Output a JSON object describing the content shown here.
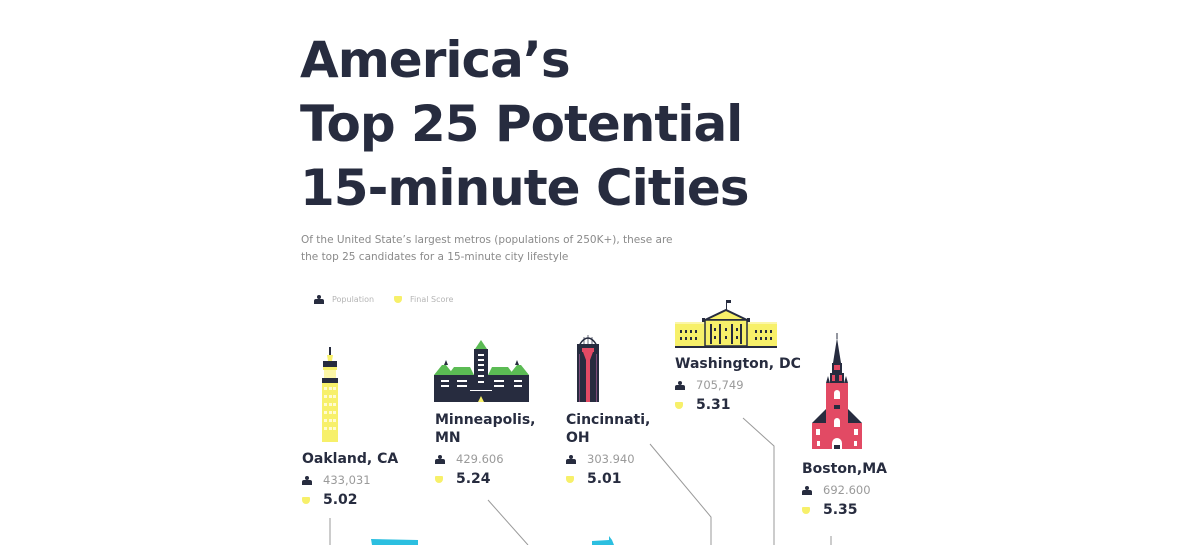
{
  "title": {
    "line1": "America’s",
    "line2": "Top 25 Potential",
    "line3": "15-minute Cities"
  },
  "subtitle": {
    "line1": "Of the United State’s largest metros (populations of 250K+), these are",
    "line2": "the top 25 candidates for a 15-minute city lifestyle"
  },
  "legend": {
    "population": "Population",
    "final_score": "Final Score"
  },
  "colors": {
    "text_dark": "#272c3f",
    "score_yellow": "#f7f06a",
    "boston_red": "#e24a64",
    "minneapolis_green": "#5bbb54",
    "accent_cyan": "#2cbfe0"
  },
  "cities": [
    {
      "name_line1": "Oakland, CA",
      "name_line2": "",
      "population": "433,031",
      "score": "5.02",
      "icon": "oakland-tower-icon"
    },
    {
      "name_line1": "Minneapolis,",
      "name_line2": "MN",
      "population": "429.606",
      "score": "5.24",
      "icon": "minneapolis-city-hall-icon"
    },
    {
      "name_line1": "Cincinnati,",
      "name_line2": "OH",
      "population": "303.940",
      "score": "5.01",
      "icon": "cincinnati-tower-icon"
    },
    {
      "name_line1": "Washington, DC",
      "name_line2": "",
      "population": "705,749",
      "score": "5.31",
      "icon": "white-house-icon"
    },
    {
      "name_line1": "Boston,MA",
      "name_line2": "",
      "population": "692.600",
      "score": "5.35",
      "icon": "old-north-church-icon"
    }
  ]
}
